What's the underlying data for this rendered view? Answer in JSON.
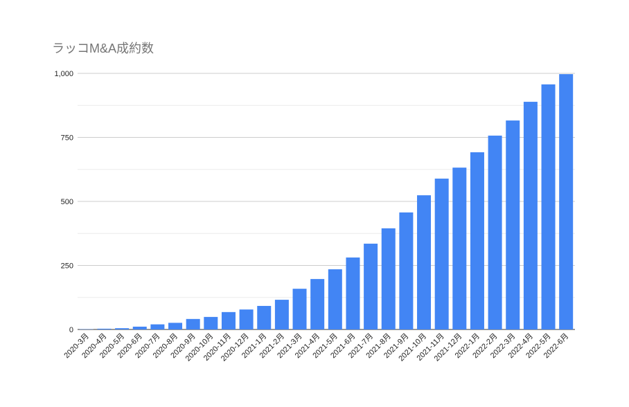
{
  "chart_data": {
    "type": "bar",
    "title": "ラッコM&A成約数",
    "categories": [
      "2020-3月",
      "2020-4月",
      "2020-5月",
      "2020-6月",
      "2020-7月",
      "2020-8月",
      "2020-9月",
      "2020-10月",
      "2020-11月",
      "2020-12月",
      "2021-1月",
      "2021-2月",
      "2021-3月",
      "2021-4月",
      "2021-5月",
      "2021-6月",
      "2021-7月",
      "2021-8月",
      "2021-9月",
      "2021-10月",
      "2021-11月",
      "2021-12月",
      "2022-1月",
      "2022-2月",
      "2022-3月",
      "2022-4月",
      "2022-5月",
      "2022-6月"
    ],
    "values": [
      1,
      3,
      5,
      11,
      20,
      26,
      41,
      49,
      68,
      78,
      92,
      116,
      159,
      197,
      235,
      281,
      335,
      395,
      457,
      524,
      589,
      632,
      692,
      757,
      816,
      889,
      957,
      997
    ],
    "color": "#4285f4",
    "ylim": [
      0,
      1000
    ],
    "yticks": [
      0,
      250,
      500,
      750,
      {
        "value": 1000,
        "label": "1,000"
      }
    ],
    "minor_yticks": [
      125,
      375,
      625,
      875
    ],
    "grid": true
  }
}
